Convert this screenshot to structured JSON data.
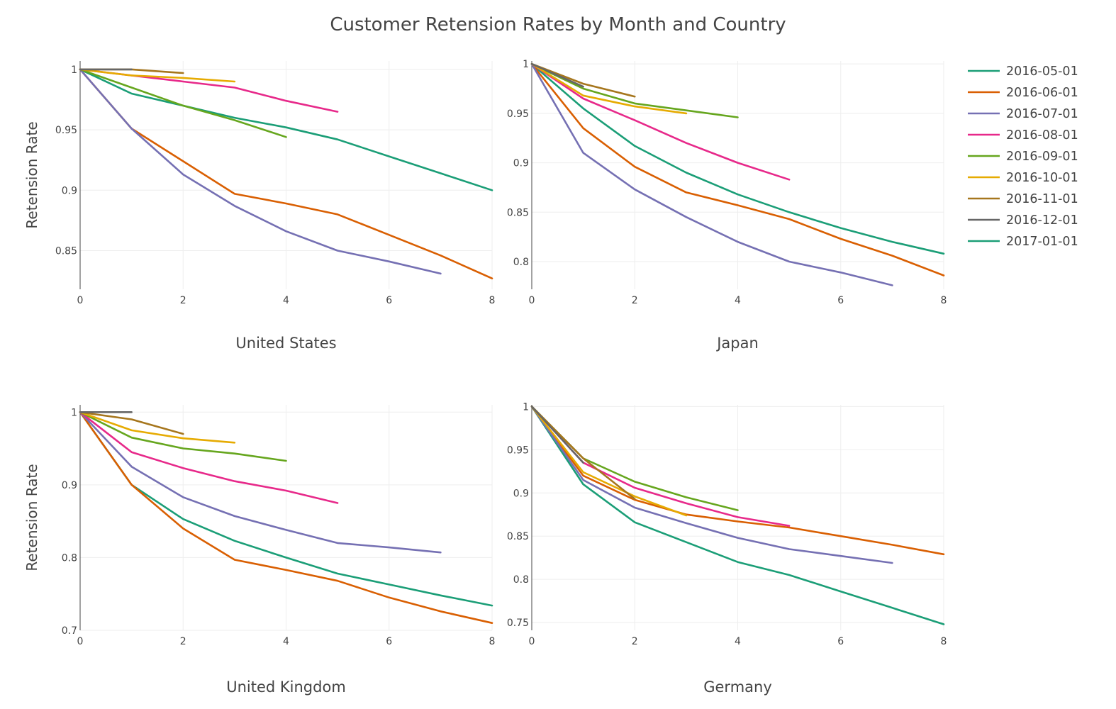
{
  "chart_data": {
    "type": "line",
    "title": "Customer Retension Rates by Month and Country",
    "ylabel": "Retension Rate",
    "xlabel": "",
    "grid": true,
    "legend_position": "right",
    "legend": [
      {
        "name": "2016-05-01",
        "color": "#1b9e77"
      },
      {
        "name": "2016-06-01",
        "color": "#d95f02"
      },
      {
        "name": "2016-07-01",
        "color": "#7570b3"
      },
      {
        "name": "2016-08-01",
        "color": "#e7298a"
      },
      {
        "name": "2016-09-01",
        "color": "#66a61e"
      },
      {
        "name": "2016-10-01",
        "color": "#e6ab02"
      },
      {
        "name": "2016-11-01",
        "color": "#a6761d"
      },
      {
        "name": "2016-12-01",
        "color": "#666666"
      },
      {
        "name": "2017-01-01",
        "color": "#1b9e77"
      }
    ],
    "subplots": [
      {
        "name": "United States",
        "xlim": [
          0,
          8
        ],
        "ylim": [
          0.818,
          1.007
        ],
        "xticks": [
          0,
          2,
          4,
          6,
          8
        ],
        "yticks": [
          0.85,
          0.9,
          0.95,
          1
        ],
        "ytick_labels": [
          "0.85",
          "0.9",
          "0.95",
          "1"
        ],
        "series": [
          {
            "name": "2016-05-01",
            "x": [
              0,
              1,
              2,
              3,
              4,
              5,
              6,
              7,
              8
            ],
            "y": [
              1,
              0.98,
              0.97,
              0.96,
              0.952,
              0.942,
              0.928,
              0.914,
              0.9
            ]
          },
          {
            "name": "2016-06-01",
            "x": [
              0,
              1,
              2,
              3,
              4,
              5,
              6,
              7,
              8
            ],
            "y": [
              1,
              0.951,
              0.924,
              0.897,
              0.889,
              0.88,
              0.863,
              0.846,
              0.827
            ]
          },
          {
            "name": "2016-07-01",
            "x": [
              0,
              1,
              2,
              3,
              4,
              5,
              6,
              7
            ],
            "y": [
              1,
              0.951,
              0.913,
              0.887,
              0.866,
              0.85,
              0.841,
              0.831
            ]
          },
          {
            "name": "2016-08-01",
            "x": [
              0,
              1,
              2,
              3,
              4,
              5
            ],
            "y": [
              1,
              0.995,
              0.99,
              0.985,
              0.974,
              0.965
            ]
          },
          {
            "name": "2016-09-01",
            "x": [
              0,
              1,
              2,
              3,
              4
            ],
            "y": [
              1,
              0.985,
              0.97,
              0.958,
              0.944
            ]
          },
          {
            "name": "2016-10-01",
            "x": [
              0,
              1,
              2,
              3
            ],
            "y": [
              1,
              0.995,
              0.993,
              0.99
            ]
          },
          {
            "name": "2016-11-01",
            "x": [
              0,
              1,
              2
            ],
            "y": [
              1,
              1,
              0.997
            ]
          },
          {
            "name": "2016-12-01",
            "x": [
              0,
              1
            ],
            "y": [
              1,
              1
            ]
          },
          {
            "name": "2017-01-01",
            "x": [
              0
            ],
            "y": [
              1
            ]
          }
        ]
      },
      {
        "name": "Japan",
        "xlim": [
          0,
          8
        ],
        "ylim": [
          0.772,
          1.003
        ],
        "xticks": [
          0,
          2,
          4,
          6,
          8
        ],
        "yticks": [
          0.8,
          0.85,
          0.9,
          0.95,
          1
        ],
        "ytick_labels": [
          "0.8",
          "0.85",
          "0.9",
          "0.95",
          "1"
        ],
        "series": [
          {
            "name": "2016-05-01",
            "x": [
              0,
              1,
              2,
              3,
              4,
              5,
              6,
              7,
              8
            ],
            "y": [
              1,
              0.955,
              0.917,
              0.89,
              0.868,
              0.85,
              0.834,
              0.82,
              0.808
            ]
          },
          {
            "name": "2016-06-01",
            "x": [
              0,
              1,
              2,
              3,
              4,
              5,
              6,
              7,
              8
            ],
            "y": [
              1,
              0.935,
              0.896,
              0.87,
              0.857,
              0.843,
              0.823,
              0.806,
              0.786
            ]
          },
          {
            "name": "2016-07-01",
            "x": [
              0,
              1,
              2,
              3,
              4,
              5,
              6,
              7
            ],
            "y": [
              1,
              0.91,
              0.873,
              0.845,
              0.82,
              0.8,
              0.789,
              0.776
            ]
          },
          {
            "name": "2016-08-01",
            "x": [
              0,
              1,
              2,
              3,
              4,
              5
            ],
            "y": [
              1,
              0.965,
              0.943,
              0.92,
              0.9,
              0.883
            ]
          },
          {
            "name": "2016-09-01",
            "x": [
              0,
              1,
              2,
              3,
              4
            ],
            "y": [
              1,
              0.975,
              0.96,
              0.953,
              0.946
            ]
          },
          {
            "name": "2016-10-01",
            "x": [
              0,
              1,
              2,
              3
            ],
            "y": [
              1,
              0.968,
              0.957,
              0.95
            ]
          },
          {
            "name": "2016-11-01",
            "x": [
              0,
              1,
              2
            ],
            "y": [
              1,
              0.98,
              0.967
            ]
          },
          {
            "name": "2016-12-01",
            "x": [
              0,
              1
            ],
            "y": [
              1,
              0.977
            ]
          },
          {
            "name": "2017-01-01",
            "x": [
              0
            ],
            "y": [
              1
            ]
          }
        ]
      },
      {
        "name": "United Kingdom",
        "xlim": [
          0,
          8
        ],
        "ylim": [
          0.7,
          1.01
        ],
        "xticks": [
          0,
          2,
          4,
          6,
          8
        ],
        "yticks": [
          0.7,
          0.8,
          0.9,
          1
        ],
        "ytick_labels": [
          "0.7",
          "0.8",
          "0.9",
          "1"
        ],
        "series": [
          {
            "name": "2016-05-01",
            "x": [
              0,
              1,
              2,
              3,
              4,
              5,
              6,
              7,
              8
            ],
            "y": [
              1,
              0.9,
              0.853,
              0.823,
              0.8,
              0.778,
              0.763,
              0.748,
              0.734
            ]
          },
          {
            "name": "2016-06-01",
            "x": [
              0,
              1,
              2,
              3,
              4,
              5,
              6,
              7,
              8
            ],
            "y": [
              1,
              0.9,
              0.84,
              0.797,
              0.783,
              0.768,
              0.745,
              0.726,
              0.71
            ]
          },
          {
            "name": "2016-07-01",
            "x": [
              0,
              1,
              2,
              3,
              4,
              5,
              6,
              7
            ],
            "y": [
              1,
              0.925,
              0.883,
              0.857,
              0.838,
              0.82,
              0.814,
              0.807
            ]
          },
          {
            "name": "2016-08-01",
            "x": [
              0,
              1,
              2,
              3,
              4,
              5
            ],
            "y": [
              1,
              0.945,
              0.923,
              0.905,
              0.892,
              0.875
            ]
          },
          {
            "name": "2016-09-01",
            "x": [
              0,
              1,
              2,
              3,
              4
            ],
            "y": [
              1,
              0.965,
              0.95,
              0.943,
              0.933
            ]
          },
          {
            "name": "2016-10-01",
            "x": [
              0,
              1,
              2,
              3
            ],
            "y": [
              1,
              0.975,
              0.964,
              0.958
            ]
          },
          {
            "name": "2016-11-01",
            "x": [
              0,
              1,
              2
            ],
            "y": [
              1,
              0.99,
              0.97
            ]
          },
          {
            "name": "2016-12-01",
            "x": [
              0,
              1
            ],
            "y": [
              1,
              1
            ]
          },
          {
            "name": "2017-01-01",
            "x": [
              0
            ],
            "y": [
              1
            ]
          }
        ]
      },
      {
        "name": "Germany",
        "xlim": [
          0,
          8
        ],
        "ylim": [
          0.741,
          1.002
        ],
        "xticks": [
          0,
          2,
          4,
          6,
          8
        ],
        "yticks": [
          0.75,
          0.8,
          0.85,
          0.9,
          0.95,
          1
        ],
        "ytick_labels": [
          "0.75",
          "0.8",
          "0.85",
          "0.9",
          "0.95",
          "1"
        ],
        "series": [
          {
            "name": "2016-05-01",
            "x": [
              0,
              1,
              2,
              3,
              4,
              5,
              6,
              7,
              8
            ],
            "y": [
              1,
              0.91,
              0.866,
              0.843,
              0.82,
              0.805,
              0.786,
              0.767,
              0.748
            ]
          },
          {
            "name": "2016-06-01",
            "x": [
              0,
              1,
              2,
              3,
              4,
              5,
              6,
              7,
              8
            ],
            "y": [
              1,
              0.92,
              0.892,
              0.875,
              0.867,
              0.86,
              0.85,
              0.84,
              0.829
            ]
          },
          {
            "name": "2016-07-01",
            "x": [
              0,
              1,
              2,
              3,
              4,
              5,
              6,
              7
            ],
            "y": [
              1,
              0.915,
              0.883,
              0.865,
              0.848,
              0.835,
              0.827,
              0.819
            ]
          },
          {
            "name": "2016-08-01",
            "x": [
              0,
              1,
              2,
              3,
              4,
              5
            ],
            "y": [
              1,
              0.935,
              0.906,
              0.888,
              0.872,
              0.862
            ]
          },
          {
            "name": "2016-09-01",
            "x": [
              0,
              1,
              2,
              3,
              4
            ],
            "y": [
              1,
              0.94,
              0.913,
              0.895,
              0.88
            ]
          },
          {
            "name": "2016-10-01",
            "x": [
              0,
              1,
              2,
              3
            ],
            "y": [
              1,
              0.924,
              0.896,
              0.874
            ]
          },
          {
            "name": "2016-11-01",
            "x": [
              0,
              1,
              2
            ],
            "y": [
              1,
              0.94,
              0.893
            ]
          },
          {
            "name": "2016-12-01",
            "x": [
              0,
              1
            ],
            "y": [
              1,
              0.935
            ]
          },
          {
            "name": "2017-01-01",
            "x": [
              0
            ],
            "y": [
              1
            ]
          }
        ]
      }
    ]
  }
}
